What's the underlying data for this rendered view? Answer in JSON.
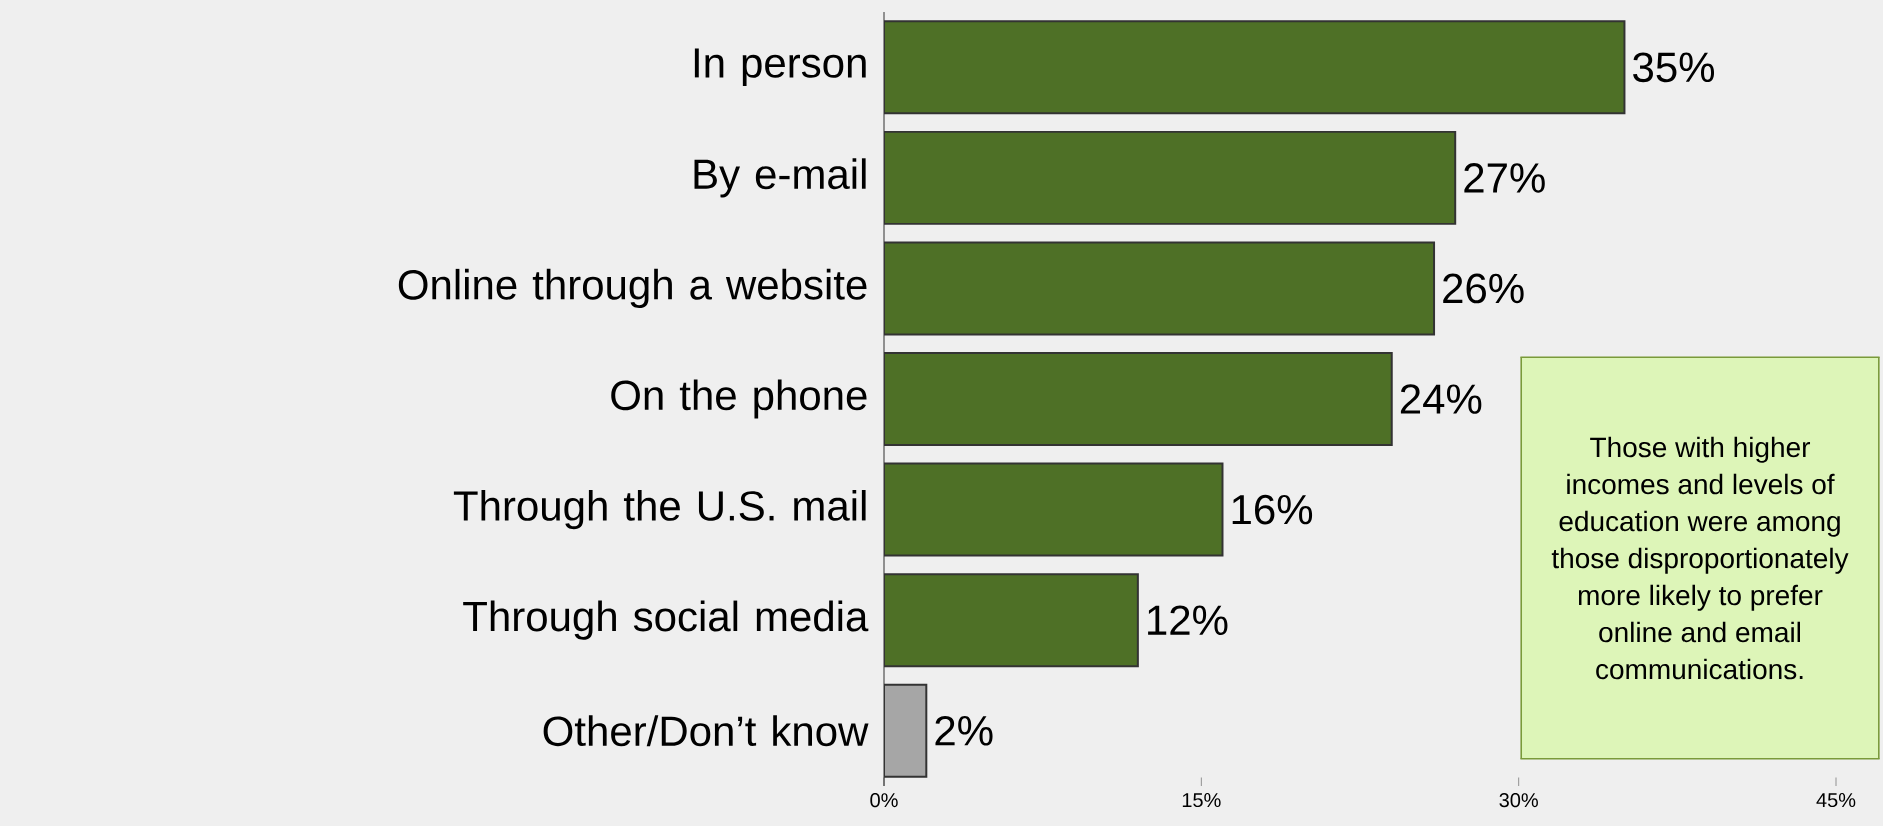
{
  "chart_data": {
    "type": "bar",
    "orientation": "horizontal",
    "categories": [
      "In person",
      "By e-mail",
      "Online through a website",
      "On the phone",
      "Through the U.S. mail",
      "Through social media",
      "Other/Don’t know"
    ],
    "values": [
      35,
      27,
      26,
      24,
      16,
      12,
      2
    ],
    "colors": [
      "#4e7026",
      "#4e7026",
      "#4e7026",
      "#4e7026",
      "#4e7026",
      "#4e7026",
      "#a6a6a6"
    ],
    "value_labels": [
      "35%",
      "27%",
      "26%",
      "24%",
      "16%",
      "12%",
      "2%"
    ],
    "xlim": [
      0,
      45
    ],
    "xticks": [
      {
        "value": 0,
        "label": "0%"
      },
      {
        "value": 15,
        "label": "15%"
      },
      {
        "value": 30,
        "label": "30%"
      },
      {
        "value": 45,
        "label": "45%"
      }
    ],
    "grid": false,
    "annotations": [
      "Those with higher incomes and levels of education were among those disproportionately more likely to prefer online and email communications."
    ]
  }
}
